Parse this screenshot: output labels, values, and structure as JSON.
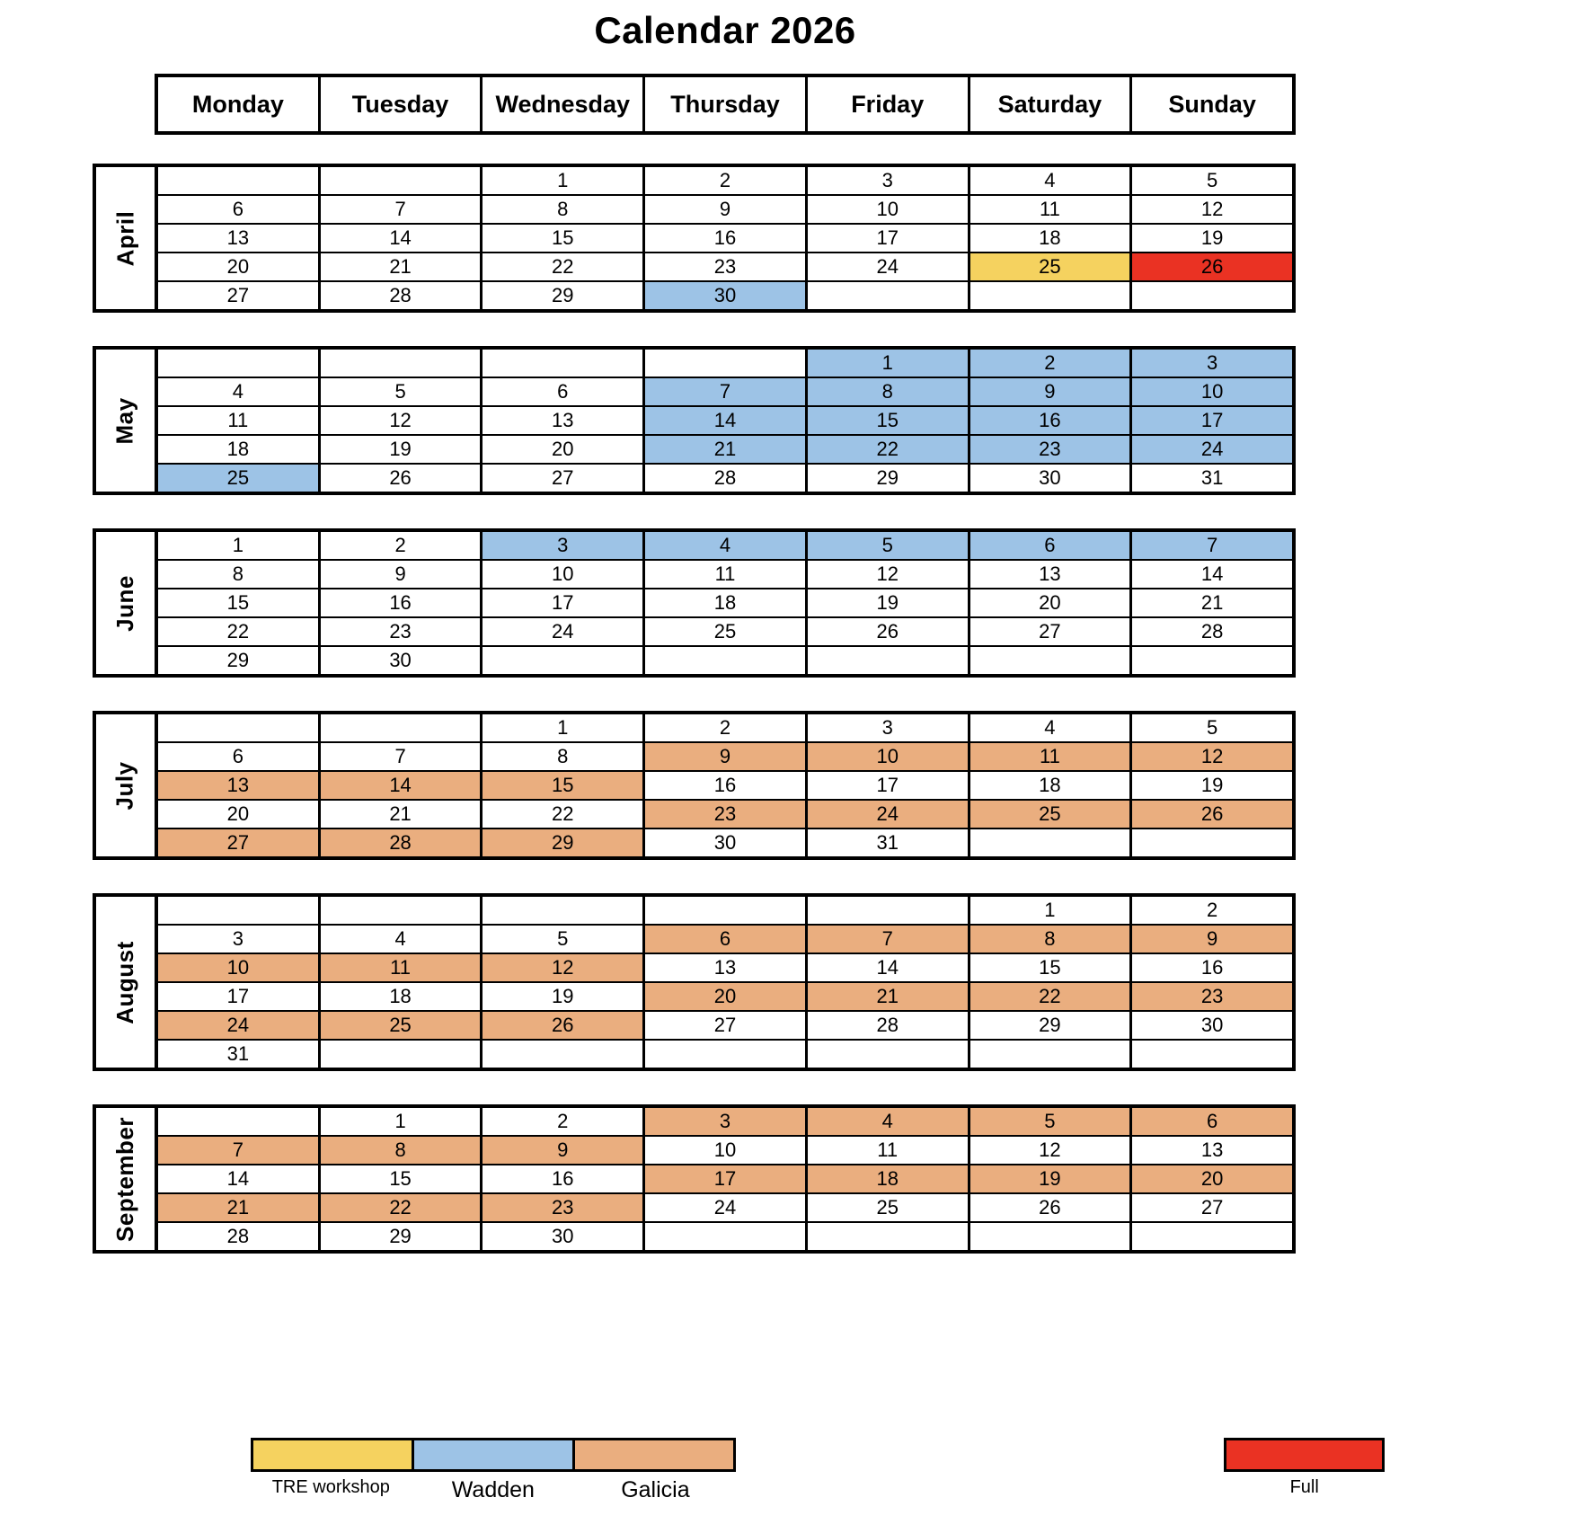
{
  "title": "Calendar 2026",
  "weekdays": [
    "Monday",
    "Tuesday",
    "Wednesday",
    "Thursday",
    "Friday",
    "Saturday",
    "Sunday"
  ],
  "colors": {
    "tre": "#F5D25F",
    "wadden": "#9DC3E6",
    "galicia": "#EAAE7F",
    "full": "#EA3223",
    "plain": "#FFFFFF"
  },
  "legend": {
    "items": [
      {
        "label": "TRE workshop",
        "color": "tre"
      },
      {
        "label": "Wadden",
        "color": "wadden"
      },
      {
        "label": "Galicia",
        "color": "galicia"
      }
    ],
    "full_item": {
      "label": "Full",
      "color": "full"
    }
  },
  "months": [
    {
      "name": "April",
      "weeks": [
        [
          [
            "",
            ""
          ],
          [
            "",
            ""
          ],
          [
            "1",
            ""
          ],
          [
            "2",
            ""
          ],
          [
            "3",
            ""
          ],
          [
            "4",
            ""
          ],
          [
            "5",
            ""
          ]
        ],
        [
          [
            "6",
            ""
          ],
          [
            "7",
            ""
          ],
          [
            "8",
            ""
          ],
          [
            "9",
            ""
          ],
          [
            "10",
            ""
          ],
          [
            "11",
            ""
          ],
          [
            "12",
            ""
          ]
        ],
        [
          [
            "13",
            ""
          ],
          [
            "14",
            ""
          ],
          [
            "15",
            ""
          ],
          [
            "16",
            ""
          ],
          [
            "17",
            ""
          ],
          [
            "18",
            ""
          ],
          [
            "19",
            ""
          ]
        ],
        [
          [
            "20",
            ""
          ],
          [
            "21",
            ""
          ],
          [
            "22",
            ""
          ],
          [
            "23",
            ""
          ],
          [
            "24",
            ""
          ],
          [
            "25",
            "tre"
          ],
          [
            "26",
            "full"
          ]
        ],
        [
          [
            "27",
            ""
          ],
          [
            "28",
            ""
          ],
          [
            "29",
            ""
          ],
          [
            "30",
            "wadden"
          ],
          [
            "",
            ""
          ],
          [
            "",
            ""
          ],
          [
            "",
            ""
          ]
        ]
      ]
    },
    {
      "name": "May",
      "weeks": [
        [
          [
            "",
            ""
          ],
          [
            "",
            ""
          ],
          [
            "",
            ""
          ],
          [
            "",
            ""
          ],
          [
            "1",
            "wadden"
          ],
          [
            "2",
            "wadden"
          ],
          [
            "3",
            "wadden"
          ]
        ],
        [
          [
            "4",
            ""
          ],
          [
            "5",
            ""
          ],
          [
            "6",
            ""
          ],
          [
            "7",
            "wadden"
          ],
          [
            "8",
            "wadden"
          ],
          [
            "9",
            "wadden"
          ],
          [
            "10",
            "wadden"
          ]
        ],
        [
          [
            "11",
            ""
          ],
          [
            "12",
            ""
          ],
          [
            "13",
            ""
          ],
          [
            "14",
            "wadden"
          ],
          [
            "15",
            "wadden"
          ],
          [
            "16",
            "wadden"
          ],
          [
            "17",
            "wadden"
          ]
        ],
        [
          [
            "18",
            ""
          ],
          [
            "19",
            ""
          ],
          [
            "20",
            ""
          ],
          [
            "21",
            "wadden"
          ],
          [
            "22",
            "wadden"
          ],
          [
            "23",
            "wadden"
          ],
          [
            "24",
            "wadden"
          ]
        ],
        [
          [
            "25",
            "wadden"
          ],
          [
            "26",
            ""
          ],
          [
            "27",
            ""
          ],
          [
            "28",
            ""
          ],
          [
            "29",
            ""
          ],
          [
            "30",
            ""
          ],
          [
            "31",
            ""
          ]
        ]
      ]
    },
    {
      "name": "June",
      "weeks": [
        [
          [
            "1",
            ""
          ],
          [
            "2",
            ""
          ],
          [
            "3",
            "wadden"
          ],
          [
            "4",
            "wadden"
          ],
          [
            "5",
            "wadden"
          ],
          [
            "6",
            "wadden"
          ],
          [
            "7",
            "wadden"
          ]
        ],
        [
          [
            "8",
            ""
          ],
          [
            "9",
            ""
          ],
          [
            "10",
            ""
          ],
          [
            "11",
            ""
          ],
          [
            "12",
            ""
          ],
          [
            "13",
            ""
          ],
          [
            "14",
            ""
          ]
        ],
        [
          [
            "15",
            ""
          ],
          [
            "16",
            ""
          ],
          [
            "17",
            ""
          ],
          [
            "18",
            ""
          ],
          [
            "19",
            ""
          ],
          [
            "20",
            ""
          ],
          [
            "21",
            ""
          ]
        ],
        [
          [
            "22",
            ""
          ],
          [
            "23",
            ""
          ],
          [
            "24",
            ""
          ],
          [
            "25",
            ""
          ],
          [
            "26",
            ""
          ],
          [
            "27",
            ""
          ],
          [
            "28",
            ""
          ]
        ],
        [
          [
            "29",
            ""
          ],
          [
            "30",
            ""
          ],
          [
            "",
            ""
          ],
          [
            "",
            ""
          ],
          [
            "",
            ""
          ],
          [
            "",
            ""
          ],
          [
            "",
            ""
          ]
        ]
      ]
    },
    {
      "name": "July",
      "weeks": [
        [
          [
            "",
            ""
          ],
          [
            "",
            ""
          ],
          [
            "1",
            ""
          ],
          [
            "2",
            ""
          ],
          [
            "3",
            ""
          ],
          [
            "4",
            ""
          ],
          [
            "5",
            ""
          ]
        ],
        [
          [
            "6",
            ""
          ],
          [
            "7",
            ""
          ],
          [
            "8",
            ""
          ],
          [
            "9",
            "galicia"
          ],
          [
            "10",
            "galicia"
          ],
          [
            "11",
            "galicia"
          ],
          [
            "12",
            "galicia"
          ]
        ],
        [
          [
            "13",
            "galicia"
          ],
          [
            "14",
            "galicia"
          ],
          [
            "15",
            "galicia"
          ],
          [
            "16",
            ""
          ],
          [
            "17",
            ""
          ],
          [
            "18",
            ""
          ],
          [
            "19",
            ""
          ]
        ],
        [
          [
            "20",
            ""
          ],
          [
            "21",
            ""
          ],
          [
            "22",
            ""
          ],
          [
            "23",
            "galicia"
          ],
          [
            "24",
            "galicia"
          ],
          [
            "25",
            "galicia"
          ],
          [
            "26",
            "galicia"
          ]
        ],
        [
          [
            "27",
            "galicia"
          ],
          [
            "28",
            "galicia"
          ],
          [
            "29",
            "galicia"
          ],
          [
            "30",
            ""
          ],
          [
            "31",
            ""
          ],
          [
            "",
            ""
          ],
          [
            "",
            ""
          ]
        ]
      ]
    },
    {
      "name": "August",
      "weeks": [
        [
          [
            "",
            ""
          ],
          [
            "",
            ""
          ],
          [
            "",
            ""
          ],
          [
            "",
            ""
          ],
          [
            "",
            ""
          ],
          [
            "1",
            ""
          ],
          [
            "2",
            ""
          ]
        ],
        [
          [
            "3",
            ""
          ],
          [
            "4",
            ""
          ],
          [
            "5",
            ""
          ],
          [
            "6",
            "galicia"
          ],
          [
            "7",
            "galicia"
          ],
          [
            "8",
            "galicia"
          ],
          [
            "9",
            "galicia"
          ]
        ],
        [
          [
            "10",
            "galicia"
          ],
          [
            "11",
            "galicia"
          ],
          [
            "12",
            "galicia"
          ],
          [
            "13",
            ""
          ],
          [
            "14",
            ""
          ],
          [
            "15",
            ""
          ],
          [
            "16",
            ""
          ]
        ],
        [
          [
            "17",
            ""
          ],
          [
            "18",
            ""
          ],
          [
            "19",
            ""
          ],
          [
            "20",
            "galicia"
          ],
          [
            "21",
            "galicia"
          ],
          [
            "22",
            "galicia"
          ],
          [
            "23",
            "galicia"
          ]
        ],
        [
          [
            "24",
            "galicia"
          ],
          [
            "25",
            "galicia"
          ],
          [
            "26",
            "galicia"
          ],
          [
            "27",
            ""
          ],
          [
            "28",
            ""
          ],
          [
            "29",
            ""
          ],
          [
            "30",
            ""
          ]
        ],
        [
          [
            "31",
            ""
          ],
          [
            "",
            ""
          ],
          [
            "",
            ""
          ],
          [
            "",
            ""
          ],
          [
            "",
            ""
          ],
          [
            "",
            ""
          ],
          [
            "",
            ""
          ]
        ]
      ]
    },
    {
      "name": "September",
      "weeks": [
        [
          [
            "",
            ""
          ],
          [
            "1",
            ""
          ],
          [
            "2",
            ""
          ],
          [
            "3",
            "galicia"
          ],
          [
            "4",
            "galicia"
          ],
          [
            "5",
            "galicia"
          ],
          [
            "6",
            "galicia"
          ]
        ],
        [
          [
            "7",
            "galicia"
          ],
          [
            "8",
            "galicia"
          ],
          [
            "9",
            "galicia"
          ],
          [
            "10",
            ""
          ],
          [
            "11",
            ""
          ],
          [
            "12",
            ""
          ],
          [
            "13",
            ""
          ]
        ],
        [
          [
            "14",
            ""
          ],
          [
            "15",
            ""
          ],
          [
            "16",
            ""
          ],
          [
            "17",
            "galicia"
          ],
          [
            "18",
            "galicia"
          ],
          [
            "19",
            "galicia"
          ],
          [
            "20",
            "galicia"
          ]
        ],
        [
          [
            "21",
            "galicia"
          ],
          [
            "22",
            "galicia"
          ],
          [
            "23",
            "galicia"
          ],
          [
            "24",
            ""
          ],
          [
            "25",
            ""
          ],
          [
            "26",
            ""
          ],
          [
            "27",
            ""
          ]
        ],
        [
          [
            "28",
            ""
          ],
          [
            "29",
            ""
          ],
          [
            "30",
            ""
          ],
          [
            "",
            ""
          ],
          [
            "",
            ""
          ],
          [
            "",
            ""
          ],
          [
            "",
            ""
          ]
        ]
      ]
    }
  ]
}
